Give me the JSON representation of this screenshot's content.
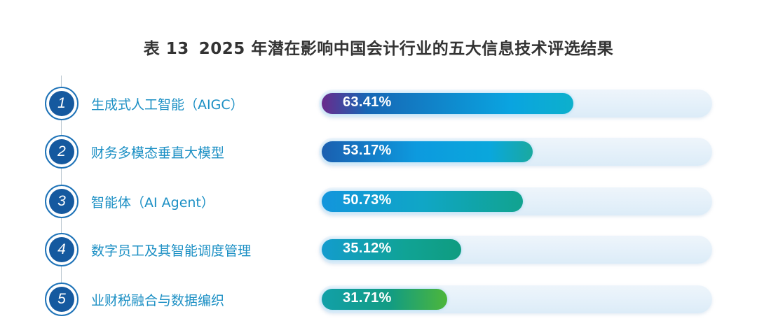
{
  "title": {
    "number": "表 13",
    "text": "2025 年潜在影响中国会计行业的五大信息技术评选结果"
  },
  "colors": {
    "badge": "#15599f",
    "label": "#1b8fc4",
    "track": "#dcecf8"
  },
  "items": [
    {
      "rank": "1",
      "label": "生成式人工智能（AIGC）",
      "value_text": "63.41%",
      "value": 63.41,
      "gradient": "linear-gradient(90deg,#6a2a8c 0%,#1667b5 18%,#0aa4e0 75%,#0db0cc 100%)"
    },
    {
      "rank": "2",
      "label": "财务多模态垂直大模型",
      "value_text": "53.17%",
      "value": 53.17,
      "gradient": "linear-gradient(90deg,#1a5fb0 0%,#0d9ade 45%,#0aa7dc 80%,#1aa99f 100%)"
    },
    {
      "rank": "3",
      "label": "智能体（AI Agent）",
      "value_text": "50.73%",
      "value": 50.73,
      "gradient": "linear-gradient(90deg,#1395dc 0%,#10a6c6 50%,#11a38f 100%)"
    },
    {
      "rank": "4",
      "label": "数字员工及其智能调度管理",
      "value_text": "35.12%",
      "value": 35.12,
      "gradient": "linear-gradient(90deg,#139cce 0%,#10a395 60%,#0f9c80 100%)"
    },
    {
      "rank": "5",
      "label": "业财税融合与数据编织",
      "value_text": "31.71%",
      "value": 31.71,
      "gradient": "linear-gradient(90deg,#12a0a8 0%,#129c82 55%,#4db63a 100%)"
    }
  ],
  "chart_data": {
    "type": "bar",
    "orientation": "horizontal",
    "title": "表 13  2025 年潜在影响中国会计行业的五大信息技术评选结果",
    "categories": [
      "生成式人工智能（AIGC）",
      "财务多模态垂直大模型",
      "智能体（AI Agent）",
      "数字员工及其智能调度管理",
      "业财税融合与数据编织"
    ],
    "ranks": [
      1,
      2,
      3,
      4,
      5
    ],
    "values": [
      63.41,
      53.17,
      50.73,
      35.12,
      31.71
    ],
    "value_labels": [
      "63.41%",
      "53.17%",
      "50.73%",
      "35.12%",
      "31.71%"
    ],
    "unit": "%",
    "xlabel": "",
    "ylabel": "",
    "xlim": [
      0,
      100
    ],
    "grid": false,
    "legend": "none"
  }
}
